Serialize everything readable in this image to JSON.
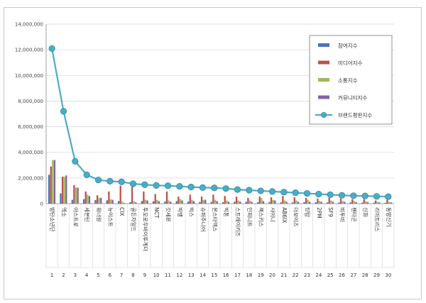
{
  "chart_data": {
    "type": "bar",
    "title": "",
    "xlabel": "",
    "ylabel": "",
    "ylim": [
      0,
      14000000
    ],
    "yticks": [
      "0",
      "2,000,000",
      "4,000,000",
      "6,000,000",
      "8,000,000",
      "10,000,000",
      "12,000,000",
      "14,000,000"
    ],
    "grid": true,
    "legend_position": "right",
    "ranks": [
      "1",
      "2",
      "3",
      "4",
      "5",
      "6",
      "7",
      "8",
      "9",
      "10",
      "11",
      "12",
      "13",
      "14",
      "15",
      "16",
      "17",
      "18",
      "19",
      "20",
      "21",
      "22",
      "23",
      "24",
      "25",
      "26",
      "27",
      "28",
      "29",
      "30"
    ],
    "categories": [
      "방탄소년단",
      "엑소",
      "아스트로",
      "세븐틴",
      "워너원",
      "뉴이스트",
      "CIX",
      "골든차일드",
      "투모로우바이투게더",
      "NCT",
      "갓세븐",
      "빅뱅",
      "빅스",
      "슈퍼주니어",
      "몬스타엑스",
      "빅톤",
      "스트레이키즈",
      "인피니트",
      "젝스키스",
      "샤이니",
      "AB6IX",
      "더보이즈",
      "틴탑",
      "2PM",
      "SF9",
      "비투비",
      "펜타곤",
      "신화",
      "리미트리스",
      "동방신기"
    ],
    "series": [
      {
        "name": "참여지수",
        "type": "bar",
        "color": "#4a72b8",
        "values": [
          2250000,
          800000,
          300000,
          350000,
          280000,
          260000,
          200000,
          120000,
          200000,
          180000,
          170000,
          200000,
          160000,
          120000,
          130000,
          110000,
          150000,
          140000,
          110000,
          130000,
          100000,
          90000,
          110000,
          100000,
          90000,
          90000,
          100000,
          80000,
          70000,
          60000
        ]
      },
      {
        "name": "미디어지수",
        "type": "bar",
        "color": "#c0504d",
        "values": [
          2900000,
          2100000,
          1450000,
          950000,
          650000,
          950000,
          1400000,
          1300000,
          950000,
          750000,
          950000,
          550000,
          700000,
          550000,
          700000,
          600000,
          550000,
          450000,
          550000,
          500000,
          600000,
          500000,
          450000,
          400000,
          450000,
          400000,
          350000,
          350000,
          250000,
          300000
        ]
      },
      {
        "name": "소통지수",
        "type": "bar",
        "color": "#9bbb59",
        "values": [
          3400000,
          2100000,
          1250000,
          700000,
          450000,
          350000,
          150000,
          200000,
          300000,
          300000,
          250000,
          350000,
          300000,
          300000,
          300000,
          250000,
          250000,
          250000,
          450000,
          300000,
          250000,
          250000,
          300000,
          200000,
          250000,
          200000,
          200000,
          200000,
          150000,
          150000
        ]
      },
      {
        "name": "커뮤니티지수",
        "type": "bar",
        "color": "#8064a2",
        "values": [
          3400000,
          2200000,
          1250000,
          600000,
          450000,
          300000,
          50000,
          100000,
          250000,
          200000,
          150000,
          250000,
          200000,
          300000,
          200000,
          150000,
          150000,
          150000,
          200000,
          250000,
          150000,
          150000,
          150000,
          150000,
          150000,
          150000,
          120000,
          120000,
          100000,
          100000
        ]
      },
      {
        "name": "브랜드평판지수",
        "type": "line",
        "color": "#4bacc6",
        "values": [
          12100000,
          7200000,
          3300000,
          2250000,
          1850000,
          1750000,
          1700000,
          1550000,
          1480000,
          1420000,
          1400000,
          1350000,
          1300000,
          1250000,
          1230000,
          1180000,
          1100000,
          1050000,
          1000000,
          950000,
          900000,
          850000,
          800000,
          750000,
          700000,
          650000,
          620000,
          600000,
          570000,
          550000
        ]
      }
    ]
  }
}
